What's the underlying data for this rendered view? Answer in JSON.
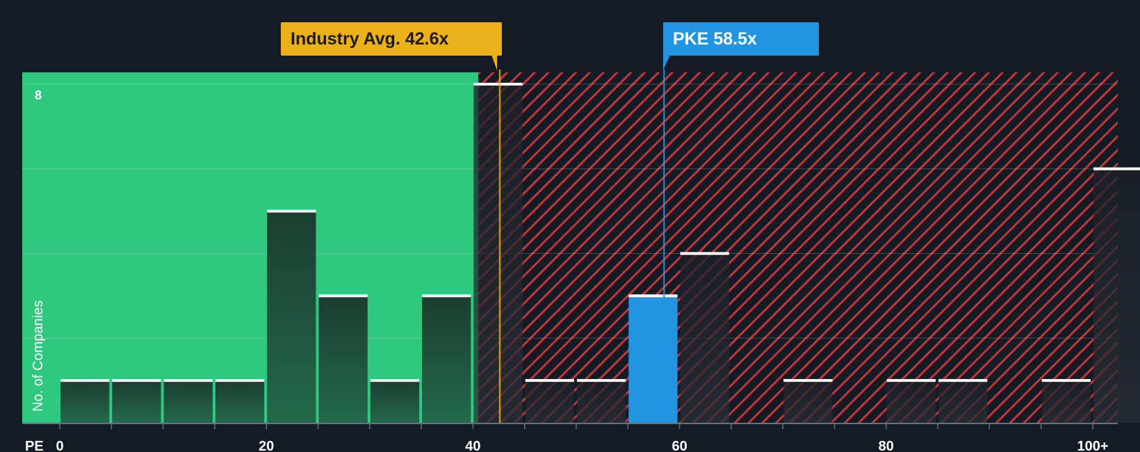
{
  "colors": {
    "background": "#151b24",
    "green_zone": "#2ec97e",
    "bar_dark": "#1f4d3c",
    "bar_dark_top": "#1b3d31",
    "hatch_red": "#c4363a",
    "industry_yellow": "#ecb11a",
    "company_blue": "#2394e2",
    "bar_cap": "#ffffff"
  },
  "labels": {
    "industry_avg": "Industry Avg. 42.6x",
    "company": "PKE 58.5x",
    "y_axis": "No. of Companies",
    "x_axis_prefix": "PE"
  },
  "chart_data": {
    "type": "bar",
    "title": "",
    "xlabel": "PE",
    "ylabel": "No. of Companies",
    "bin_width": 5,
    "x_range": [
      0,
      102.5
    ],
    "ylim": [
      0,
      8
    ],
    "y_tick_labels": [
      "8"
    ],
    "y_tick_values": [
      8
    ],
    "gridlines": [
      2,
      4,
      6,
      8
    ],
    "x_tick_values": [
      0,
      20,
      40,
      60,
      80,
      100
    ],
    "x_tick_labels": [
      "0",
      "20",
      "40",
      "60",
      "80",
      "100+"
    ],
    "bins": [
      {
        "start": 0,
        "value": 1
      },
      {
        "start": 5,
        "value": 1
      },
      {
        "start": 10,
        "value": 1
      },
      {
        "start": 15,
        "value": 1
      },
      {
        "start": 20,
        "value": 5
      },
      {
        "start": 25,
        "value": 3
      },
      {
        "start": 30,
        "value": 1
      },
      {
        "start": 35,
        "value": 3
      },
      {
        "start": 40,
        "value": 8
      },
      {
        "start": 45,
        "value": 1
      },
      {
        "start": 50,
        "value": 1
      },
      {
        "start": 55,
        "value": 3,
        "highlight": true
      },
      {
        "start": 60,
        "value": 4
      },
      {
        "start": 70,
        "value": 1
      },
      {
        "start": 80,
        "value": 1
      },
      {
        "start": 85,
        "value": 1
      },
      {
        "start": 95,
        "value": 1
      },
      {
        "start": 100,
        "value": 6
      }
    ],
    "industry_avg_pe": 42.6,
    "company_pe": 58.5,
    "green_zone_end": 41
  }
}
